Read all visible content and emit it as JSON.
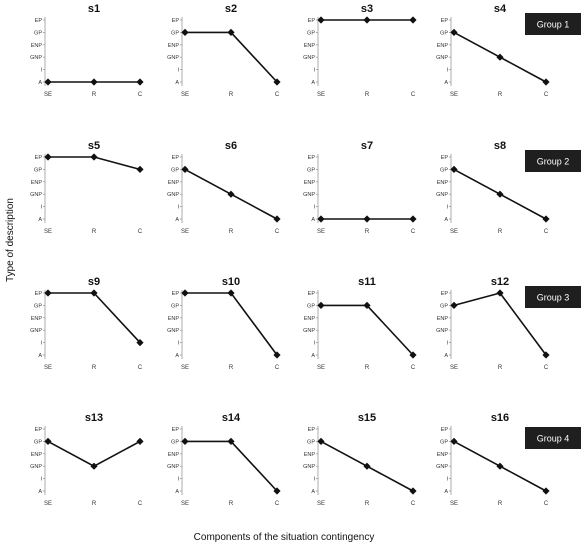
{
  "figure": {
    "xlabel": "Components of the situation contingency",
    "ylabel": "Type of description",
    "groups": [
      "Group 1",
      "Group 2",
      "Group 3",
      "Group 4"
    ]
  },
  "chart_data": {
    "type": "line",
    "x_categories": [
      "SE",
      "R",
      "C"
    ],
    "y_categories": [
      "A",
      "I",
      "GNP",
      "ENP",
      "GP",
      "EP"
    ],
    "xlabel": "Components of the situation contingency",
    "ylabel": "Type of description",
    "panels": [
      {
        "title": "s1",
        "group": "Group 1",
        "values": [
          "A",
          "A",
          "A"
        ]
      },
      {
        "title": "s2",
        "group": "Group 1",
        "values": [
          "GP",
          "GP",
          "A"
        ]
      },
      {
        "title": "s3",
        "group": "Group 1",
        "values": [
          "EP",
          "EP",
          "EP"
        ]
      },
      {
        "title": "s4",
        "group": "Group 1",
        "values": [
          "GP",
          "GNP",
          "A"
        ]
      },
      {
        "title": "s5",
        "group": "Group 2",
        "values": [
          "EP",
          "EP",
          "GP"
        ]
      },
      {
        "title": "s6",
        "group": "Group 2",
        "values": [
          "GP",
          "GNP",
          "A"
        ]
      },
      {
        "title": "s7",
        "group": "Group 2",
        "values": [
          "A",
          "A",
          "A"
        ]
      },
      {
        "title": "s8",
        "group": "Group 2",
        "values": [
          "GP",
          "GNP",
          "A"
        ]
      },
      {
        "title": "s9",
        "group": "Group 3",
        "values": [
          "EP",
          "EP",
          "I"
        ]
      },
      {
        "title": "s10",
        "group": "Group 3",
        "values": [
          "EP",
          "EP",
          "A"
        ]
      },
      {
        "title": "s11",
        "group": "Group 3",
        "values": [
          "GP",
          "GP",
          "A"
        ]
      },
      {
        "title": "s12",
        "group": "Group 3",
        "values": [
          "GP",
          "EP",
          "A"
        ]
      },
      {
        "title": "s13",
        "group": "Group 4",
        "values": [
          "GP",
          "GNP",
          "GP"
        ]
      },
      {
        "title": "s14",
        "group": "Group 4",
        "values": [
          "GP",
          "GP",
          "A"
        ]
      },
      {
        "title": "s15",
        "group": "Group 4",
        "values": [
          "GP",
          "GNP",
          "A"
        ]
      },
      {
        "title": "s16",
        "group": "Group 4",
        "values": [
          "GP",
          "GNP",
          "A"
        ]
      }
    ]
  }
}
